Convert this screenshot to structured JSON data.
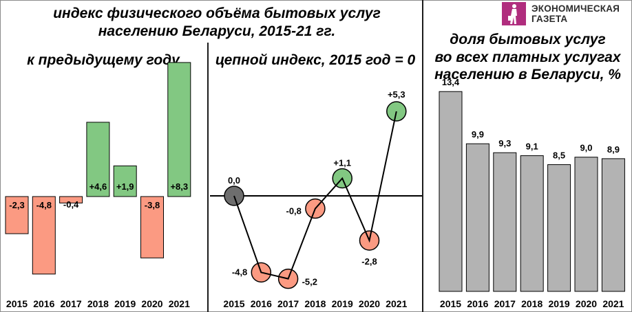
{
  "header": {
    "main_title_line1": "индекс физического объёма бытовых услуг",
    "main_title_line2": "населению Беларуси, 2015-21 гг.",
    "left_subtitle": "к предыдущему году",
    "middle_subtitle": "цепной индекс, 2015 год = 0",
    "right_title_line1": "доля бытовых услуг",
    "right_title_line2": "во всех платных услугах",
    "right_title_line3": "населению в Беларуси, %"
  },
  "logo": {
    "icon": "walking-person-icon",
    "line1": "ЭКОНОМИЧЕСКАЯ",
    "line2": "ГАЗЕТА",
    "color": "#b02d7e"
  },
  "colors": {
    "positive": "#82c882",
    "negative": "#fb9a82",
    "neutral": "#6e6e6e",
    "share_bar": "#b3b3b3",
    "outline": "#000000"
  },
  "chart_data": [
    {
      "type": "bar",
      "title": "к предыдущему году",
      "categories": [
        "2015",
        "2016",
        "2017",
        "2018",
        "2019",
        "2020",
        "2021"
      ],
      "values": [
        -2.3,
        -4.8,
        -0.4,
        4.6,
        1.9,
        -3.8,
        8.3
      ],
      "labels": [
        "-2,3",
        "-4,8",
        "-0,4",
        "+4,6",
        "+1,9",
        "-3,8",
        "+8,3"
      ],
      "xlabel": "",
      "ylabel": "",
      "ylim": [
        -5.0,
        8.5
      ],
      "grid": false
    },
    {
      "type": "line",
      "title": "цепной индекс, 2015 год = 0",
      "categories": [
        "2015",
        "2016",
        "2017",
        "2018",
        "2019",
        "2020",
        "2021"
      ],
      "values": [
        0.0,
        -4.8,
        -5.2,
        -0.8,
        1.1,
        -2.8,
        5.3
      ],
      "labels": [
        "0,0",
        "-4,8",
        "-5,2",
        "-0,8",
        "+1,1",
        "-2,8",
        "+5,3"
      ],
      "xlabel": "",
      "ylabel": "",
      "ylim": [
        -5.5,
        6.0
      ],
      "grid": false,
      "markers": "circle"
    },
    {
      "type": "bar",
      "title": "доля бытовых услуг во всех платных услугах населению в Беларуси, %",
      "categories": [
        "2015",
        "2016",
        "2017",
        "2018",
        "2019",
        "2020",
        "2021"
      ],
      "values": [
        13.4,
        9.9,
        9.3,
        9.1,
        8.5,
        9.0,
        8.9
      ],
      "labels": [
        "13,4",
        "9,9",
        "9,3",
        "9,1",
        "8,5",
        "9,0",
        "8,9"
      ],
      "xlabel": "",
      "ylabel": "%",
      "ylim": [
        0,
        14
      ],
      "grid": false
    }
  ]
}
